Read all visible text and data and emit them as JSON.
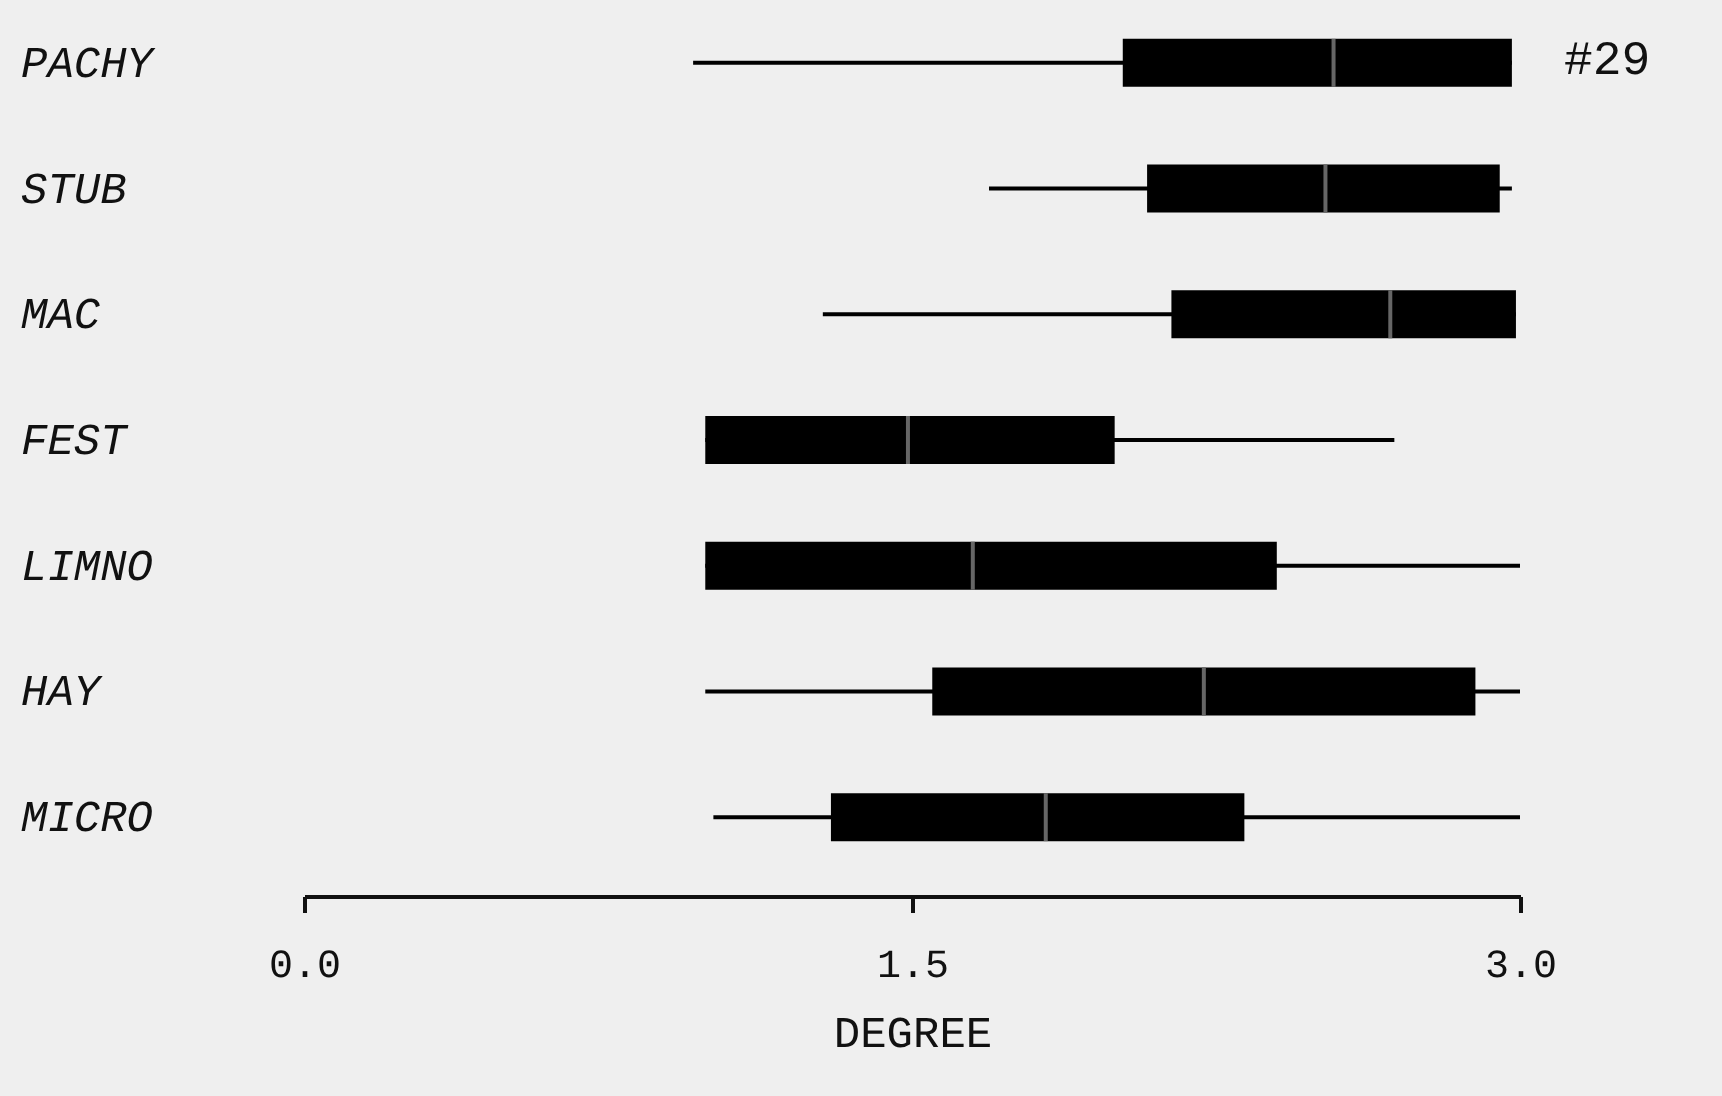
{
  "chart_data": {
    "type": "box",
    "orientation": "horizontal",
    "xlabel": "DEGREE",
    "annotations": [
      "#29"
    ],
    "categories": [
      "PACHY",
      "STUB",
      "MAC",
      "FEST",
      "LIMNO",
      "HAY",
      "MICRO"
    ],
    "xlim": [
      0,
      3
    ],
    "xticks": [
      {
        "value": 0,
        "label": "0.0"
      },
      {
        "value": 1.5,
        "label": "1.5"
      },
      {
        "value": 3,
        "label": "3.0"
      }
    ],
    "grid": false,
    "series": [
      {
        "color": "#000000",
        "boxes": [
          {
            "low": 0.96,
            "q1": 2.02,
            "median": 2.54,
            "q3": 2.98,
            "high": 2.98
          },
          {
            "low": 1.69,
            "q1": 2.08,
            "median": 2.52,
            "q3": 2.95,
            "high": 2.98
          },
          {
            "low": 1.28,
            "q1": 2.14,
            "median": 2.68,
            "q3": 2.99,
            "high": 2.99
          },
          {
            "low": 0.99,
            "q1": 0.99,
            "median": 1.49,
            "q3": 2.0,
            "high": 2.69
          },
          {
            "low": 0.99,
            "q1": 0.99,
            "median": 1.65,
            "q3": 2.4,
            "high": 3.0
          },
          {
            "low": 0.99,
            "q1": 1.55,
            "median": 2.22,
            "q3": 2.89,
            "high": 3.0
          },
          {
            "low": 1.01,
            "q1": 1.3,
            "median": 1.83,
            "q3": 2.32,
            "high": 3.0
          }
        ]
      }
    ]
  }
}
